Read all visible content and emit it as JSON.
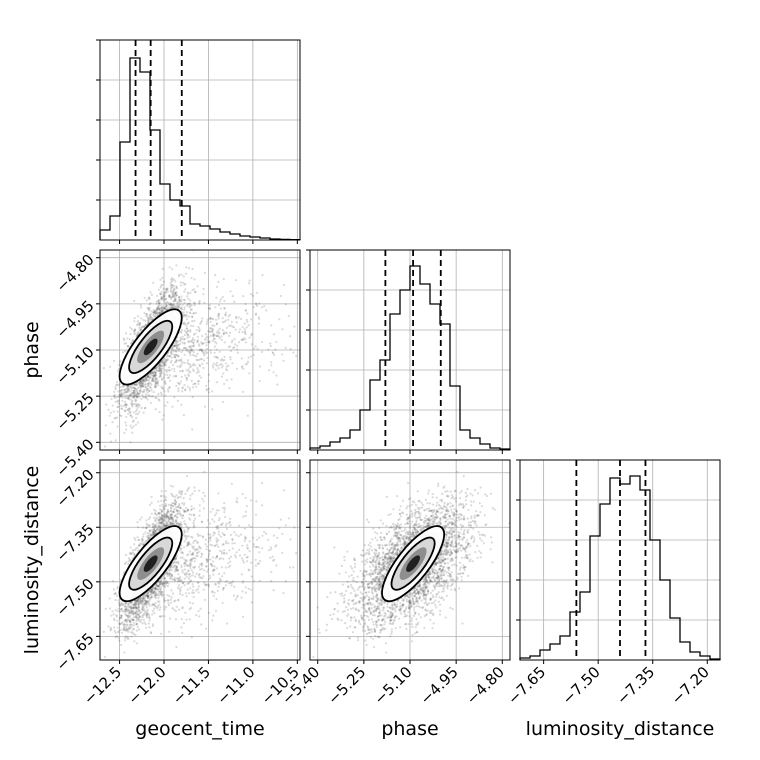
{
  "chart_data": {
    "type": "corner",
    "parameters": [
      "geocent_time",
      "phase",
      "luminosity_distance"
    ],
    "ranges": {
      "geocent_time": [
        -12.72,
        -10.47
      ],
      "phase": [
        -5.425,
        -4.775
      ],
      "luminosity_distance": [
        -7.715,
        -7.165
      ]
    },
    "ticks": {
      "geocent_time": [
        -12.5,
        -12.0,
        -11.5,
        -11.0,
        -10.5
      ],
      "phase": [
        -5.4,
        -5.25,
        -5.1,
        -4.95,
        -4.8
      ],
      "luminosity_distance": [
        -7.65,
        -7.5,
        -7.35,
        -7.2
      ]
    },
    "tick_labels": {
      "geocent_time": [
        "−12.5",
        "−12.0",
        "−11.5",
        "−11.0",
        "−10.5"
      ],
      "phase": [
        "−5.40",
        "−5.25",
        "−5.10",
        "−4.95",
        "−4.80"
      ],
      "luminosity_distance": [
        "−7.65",
        "−7.50",
        "−7.35",
        "−7.20"
      ]
    },
    "quantiles": {
      "geocent_time": [
        -12.32,
        -12.15,
        -11.8
      ],
      "phase": [
        -5.18,
        -5.09,
        -5.0
      ],
      "luminosity_distance": [
        -7.56,
        -7.44,
        -7.37
      ]
    },
    "histograms": {
      "geocent_time": [
        0.05,
        0.12,
        0.49,
        0.91,
        0.84,
        0.55,
        0.28,
        0.2,
        0.17,
        0.08,
        0.07,
        0.055,
        0.04,
        0.03,
        0.02,
        0.015,
        0.01,
        0.005,
        0.003,
        0.002
      ],
      "phase": [
        0.01,
        0.02,
        0.04,
        0.06,
        0.1,
        0.2,
        0.35,
        0.45,
        0.68,
        0.8,
        0.92,
        0.83,
        0.73,
        0.63,
        0.32,
        0.1,
        0.06,
        0.03,
        0.01,
        0.005
      ],
      "luminosity_distance": [
        0.01,
        0.02,
        0.05,
        0.08,
        0.12,
        0.24,
        0.34,
        0.62,
        0.78,
        0.91,
        0.88,
        0.92,
        0.85,
        0.6,
        0.4,
        0.21,
        0.09,
        0.04,
        0.02,
        0.005
      ]
    },
    "posterior": {
      "mean": {
        "geocent_time": -12.15,
        "phase": -5.09,
        "luminosity_distance": -7.45
      },
      "std": {
        "geocent_time": 0.32,
        "phase": 0.09,
        "luminosity_distance": 0.08
      },
      "correlation": {
        "geocent_time|phase": 0.72,
        "geocent_time|luminosity_distance": 0.72,
        "phase|luminosity_distance": 0.72
      }
    },
    "grid": true
  }
}
